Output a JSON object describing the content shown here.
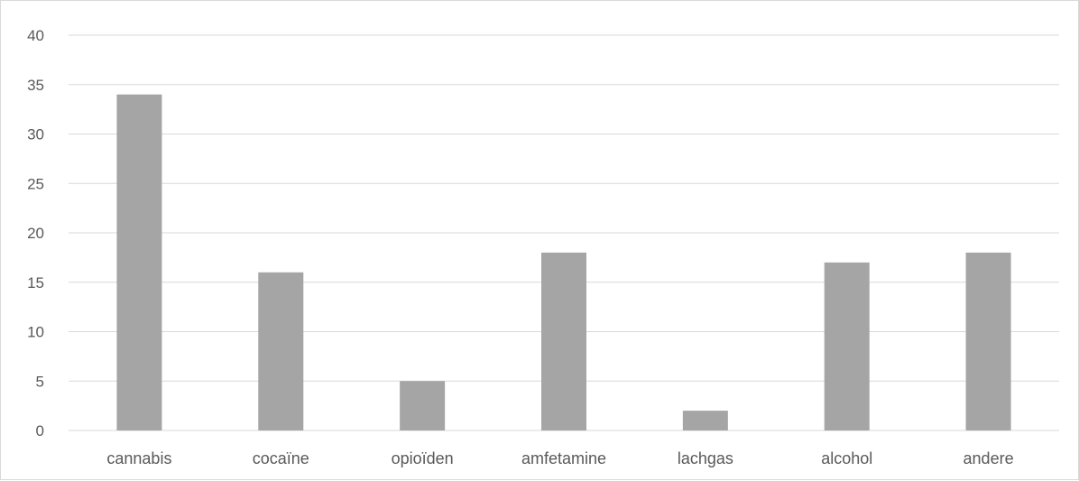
{
  "chart_data": {
    "type": "bar",
    "title": "",
    "xlabel": "",
    "ylabel": "",
    "categories": [
      "cannabis",
      "cocaïne",
      "opioïden",
      "amfetamine",
      "lachgas",
      "alcohol",
      "andere"
    ],
    "values": [
      34,
      16,
      5,
      18,
      2,
      17,
      18
    ],
    "ylim": [
      0,
      40
    ],
    "yticks": [
      0,
      5,
      10,
      15,
      20,
      25,
      30,
      35,
      40
    ],
    "grid": true,
    "legend": "none",
    "bar_color": "#a5a5a5",
    "grid_color": "#d9d9d9"
  }
}
